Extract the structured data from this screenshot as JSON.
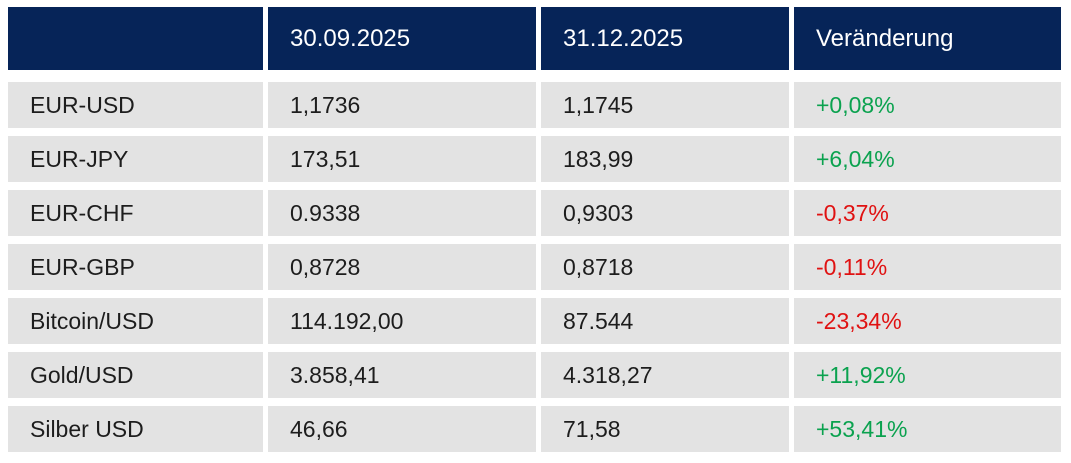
{
  "chart_data": {
    "type": "table",
    "title": "",
    "columns": [
      "",
      "30.09.2025",
      "31.12.2025",
      "Veränderung"
    ],
    "rows": [
      [
        "EUR-USD",
        "1,1736",
        "1,1745",
        "+0,08%"
      ],
      [
        "EUR-JPY",
        "173,51",
        "183,99",
        "+6,04%"
      ],
      [
        "EUR-CHF",
        "0.9338",
        "0,9303",
        "-0,37%"
      ],
      [
        "EUR-GBP",
        "0,8728",
        "0,8718",
        "-0,11%"
      ],
      [
        "Bitcoin/USD",
        "114.192,00",
        "87.544",
        "-23,34%"
      ],
      [
        "Gold/USD",
        "3.858,41",
        "4.318,27",
        "+11,92%"
      ],
      [
        "Silber USD",
        "46,66",
        "71,58",
        "+53,41%"
      ]
    ],
    "trends": [
      "up",
      "up",
      "down",
      "down",
      "down",
      "up",
      "up"
    ],
    "layout_hints": {
      "header_background": "#062458",
      "row_background": "#e3e3e3",
      "grid": "white gaps between cells",
      "legend": "none"
    }
  },
  "colors": {
    "header_bg": "#062458",
    "header_text": "#ffffff",
    "row_bg": "#e3e3e3",
    "text": "#1d1d1d",
    "positive": "#0ba24f",
    "negative": "#e01212",
    "page_bg": "#ffffff"
  }
}
